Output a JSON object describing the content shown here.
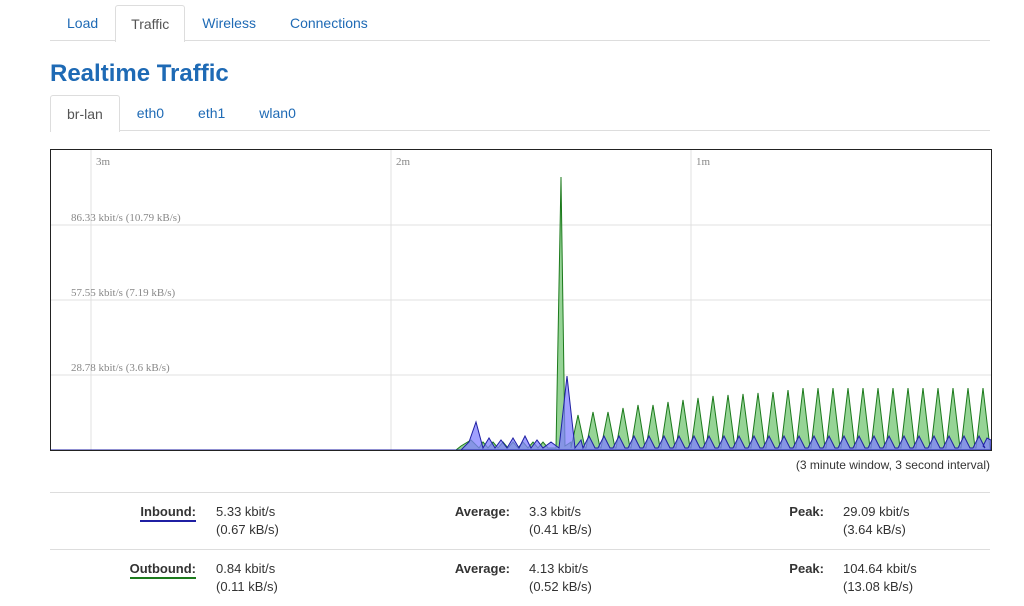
{
  "main_tabs": [
    "Load",
    "Traffic",
    "Wireless",
    "Connections"
  ],
  "active_main_tab": "Traffic",
  "page_title": "Realtime Traffic",
  "interface_tabs": [
    "br-lan",
    "eth0",
    "eth1",
    "wlan0"
  ],
  "active_interface_tab": "br-lan",
  "graph": {
    "time_labels": [
      "3m",
      "2m",
      "1m"
    ],
    "y_labels": [
      "86.33 kbit/s (10.79 kB/s)",
      "57.55 kbit/s (7.19 kB/s)",
      "28.78 kbit/s (3.6 kB/s)"
    ],
    "window_note": "(3 minute window, 3 second interval)",
    "colors": {
      "inbound_fill": "#8080ff",
      "inbound_line": "#1f1fa3",
      "outbound_fill": "#84cc84",
      "outbound_line": "#1c7a1c"
    }
  },
  "stats": {
    "inbound": {
      "label": "Inbound:",
      "current": "5.33 kbit/s",
      "current_kb": "(0.67 kB/s)",
      "average_label": "Average:",
      "average": "3.3 kbit/s",
      "average_kb": "(0.41 kB/s)",
      "peak_label": "Peak:",
      "peak": "29.09 kbit/s",
      "peak_kb": "(3.64 kB/s)"
    },
    "outbound": {
      "label": "Outbound:",
      "current": "0.84 kbit/s",
      "current_kb": "(0.11 kB/s)",
      "average_label": "Average:",
      "average": "4.13 kbit/s",
      "average_kb": "(0.52 kB/s)",
      "peak_label": "Peak:",
      "peak": "104.64 kbit/s",
      "peak_kb": "(13.08 kB/s)"
    }
  }
}
